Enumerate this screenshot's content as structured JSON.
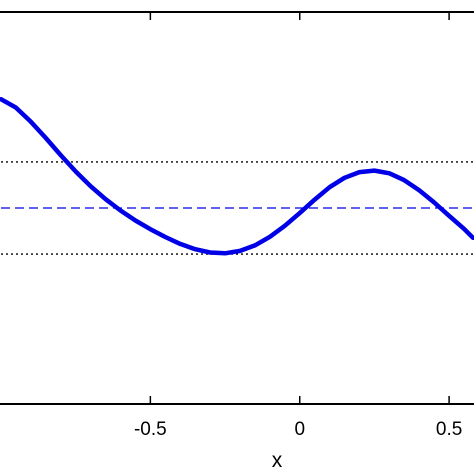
{
  "chart_data": {
    "type": "line",
    "xlabel": "x",
    "ylabel": "",
    "title": "",
    "xlim": [
      -1.0,
      0.58
    ],
    "ylim": [
      -1.0,
      1.0
    ],
    "x_ticks": [
      -0.5,
      0,
      0.5
    ],
    "x_tick_labels": [
      "-0.5",
      "0",
      "0.5"
    ],
    "grid": false,
    "series": [
      {
        "name": "",
        "color": "#0000e6",
        "style": "solid",
        "x": [
          -1.0,
          -0.95,
          -0.9,
          -0.85,
          -0.8,
          -0.75,
          -0.7,
          -0.65,
          -0.6,
          -0.55,
          -0.5,
          -0.45,
          -0.4,
          -0.35,
          -0.3,
          -0.25,
          -0.2,
          -0.15,
          -0.1,
          -0.05,
          0.0,
          0.05,
          0.1,
          0.15,
          0.2,
          0.25,
          0.3,
          0.35,
          0.4,
          0.45,
          0.5,
          0.55,
          0.58
        ],
        "y": [
          0.555,
          0.512,
          0.44,
          0.357,
          0.27,
          0.186,
          0.111,
          0.045,
          -0.013,
          -0.064,
          -0.108,
          -0.148,
          -0.183,
          -0.21,
          -0.227,
          -0.231,
          -0.219,
          -0.191,
          -0.147,
          -0.091,
          -0.026,
          0.043,
          0.106,
          0.154,
          0.183,
          0.191,
          0.177,
          0.142,
          0.091,
          0.028,
          -0.04,
          -0.106,
          -0.152
        ]
      }
    ],
    "reference_lines": [
      {
        "y": 0.235,
        "color": "#000000",
        "style": "dotted"
      },
      {
        "y": 0.0,
        "color": "#0000e6",
        "style": "dashed"
      },
      {
        "y": -0.235,
        "color": "#000000",
        "style": "dotted"
      }
    ]
  }
}
